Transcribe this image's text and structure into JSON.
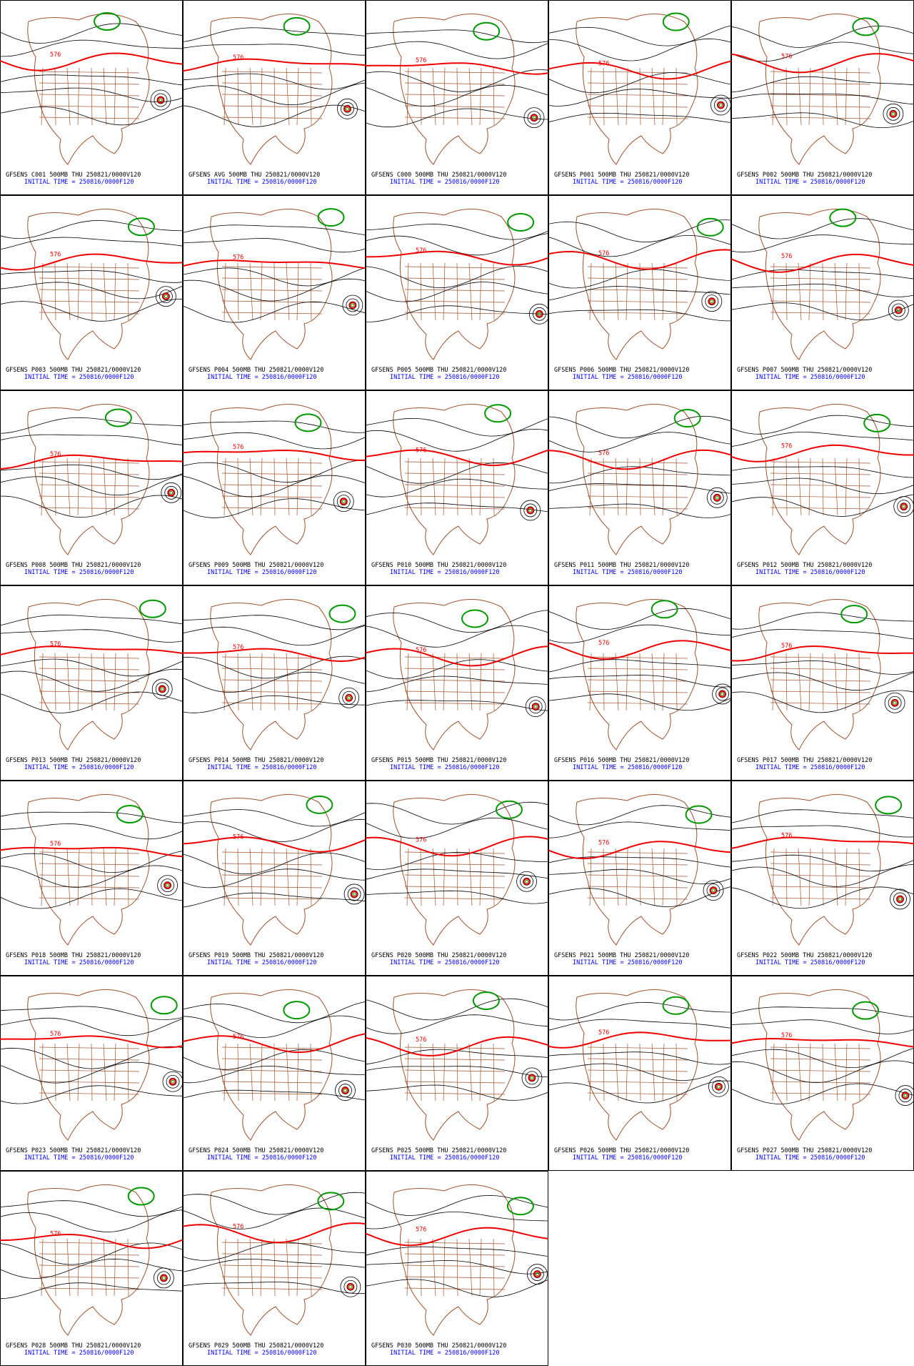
{
  "panels": [
    {
      "title": "GFSENS C001 500MB THU 250821/0000V120",
      "init": "INITIAL TIME = 250816/0000F120",
      "contour": "576"
    },
    {
      "title": "GFSENS AVG 500MB THU 250821/0000V120",
      "init": "INITIAL TIME = 250816/0000F120",
      "contour": "576"
    },
    {
      "title": "GFSENS C000 500MB THU 250821/0000V120",
      "init": "INITIAL TIME = 250816/0000F120",
      "contour": "576"
    },
    {
      "title": "GFSENS P001 500MB THU 250821/0000V120",
      "init": "INITIAL TIME = 250816/0000F120",
      "contour": "576"
    },
    {
      "title": "GFSENS P002 500MB THU 250821/0000V120",
      "init": "INITIAL TIME = 250816/0000F120",
      "contour": "576"
    },
    {
      "title": "GFSENS P003 500MB THU 250821/0000V120",
      "init": "INITIAL TIME = 250816/0000F120",
      "contour": "576"
    },
    {
      "title": "GFSENS P004 500MB THU 250821/0000V120",
      "init": "INITIAL TIME = 250816/0000F120",
      "contour": "576"
    },
    {
      "title": "GFSENS P005 500MB THU 250821/0000V120",
      "init": "INITIAL TIME = 250816/0000F120",
      "contour": "576"
    },
    {
      "title": "GFSENS P006 500MB THU 250821/0000V120",
      "init": "INITIAL TIME = 250816/0000F120",
      "contour": "576"
    },
    {
      "title": "GFSENS P007 500MB THU 250821/0000V120",
      "init": "INITIAL TIME = 250816/0000F120",
      "contour": "576"
    },
    {
      "title": "GFSENS P008 500MB THU 250821/0000V120",
      "init": "INITIAL TIME = 250816/0000F120",
      "contour": "576"
    },
    {
      "title": "GFSENS P009 500MB THU 250821/0000V120",
      "init": "INITIAL TIME = 250816/0000F120",
      "contour": "576"
    },
    {
      "title": "GFSENS P010 500MB THU 250821/0000V120",
      "init": "INITIAL TIME = 250816/0000F120",
      "contour": "576"
    },
    {
      "title": "GFSENS P011 500MB THU 250821/0000V120",
      "init": "INITIAL TIME = 250816/0000F120",
      "contour": "576"
    },
    {
      "title": "GFSENS P012 500MB THU 250821/0000V120",
      "init": "INITIAL TIME = 250816/0000F120",
      "contour": "576"
    },
    {
      "title": "GFSENS P013 500MB THU 250821/0000V120",
      "init": "INITIAL TIME = 250816/0000F120",
      "contour": "576"
    },
    {
      "title": "GFSENS P014 500MB THU 250821/0000V120",
      "init": "INITIAL TIME = 250816/0000F120",
      "contour": "576"
    },
    {
      "title": "GFSENS P015 500MB THU 250821/0000V120",
      "init": "INITIAL TIME = 250816/0000F120",
      "contour": "576"
    },
    {
      "title": "GFSENS P016 500MB THU 250821/0000V120",
      "init": "INITIAL TIME = 250816/0000F120",
      "contour": "576"
    },
    {
      "title": "GFSENS P017 500MB THU 250821/0000V120",
      "init": "INITIAL TIME = 250816/0000F120",
      "contour": "576"
    },
    {
      "title": "GFSENS P018 500MB THU 250821/0000V120",
      "init": "INITIAL TIME = 250816/0000F120",
      "contour": "576"
    },
    {
      "title": "GFSENS P019 500MB THU 250821/0000V120",
      "init": "INITIAL TIME = 250816/0000F120",
      "contour": "576"
    },
    {
      "title": "GFSENS P020 500MB THU 250821/0000V120",
      "init": "INITIAL TIME = 250816/0000F120",
      "contour": "576"
    },
    {
      "title": "GFSENS P021 500MB THU 250821/0000V120",
      "init": "INITIAL TIME = 250816/0000F120",
      "contour": "576"
    },
    {
      "title": "GFSENS P022 500MB THU 250821/0000V120",
      "init": "INITIAL TIME = 250816/0000F120",
      "contour": "576"
    },
    {
      "title": "GFSENS P023 500MB THU 250821/0000V120",
      "init": "INITIAL TIME = 250816/0000F120",
      "contour": "576"
    },
    {
      "title": "GFSENS P024 500MB THU 250821/0000V120",
      "init": "INITIAL TIME = 250816/0000F120",
      "contour": "576"
    },
    {
      "title": "GFSENS P025 500MB THU 250821/0000V120",
      "init": "INITIAL TIME = 250816/0000F120",
      "contour": "576"
    },
    {
      "title": "GFSENS P026 500MB THU 250821/0000V120",
      "init": "INITIAL TIME = 250816/0000F120",
      "contour": "576"
    },
    {
      "title": "GFSENS P027 500MB THU 250821/0000V120",
      "init": "INITIAL TIME = 250816/0000F120",
      "contour": "576"
    },
    {
      "title": "GFSENS P028 500MB THU 250821/0000V120",
      "init": "INITIAL TIME = 250816/0000F120",
      "contour": "576"
    },
    {
      "title": "GFSENS P029 500MB THU 250821/0000V120",
      "init": "INITIAL TIME = 250816/0000F120",
      "contour": "576"
    },
    {
      "title": "GFSENS P030 500MB THU 250821/0000V120",
      "init": "INITIAL TIME = 250816/0000F120",
      "contour": "576"
    }
  ]
}
